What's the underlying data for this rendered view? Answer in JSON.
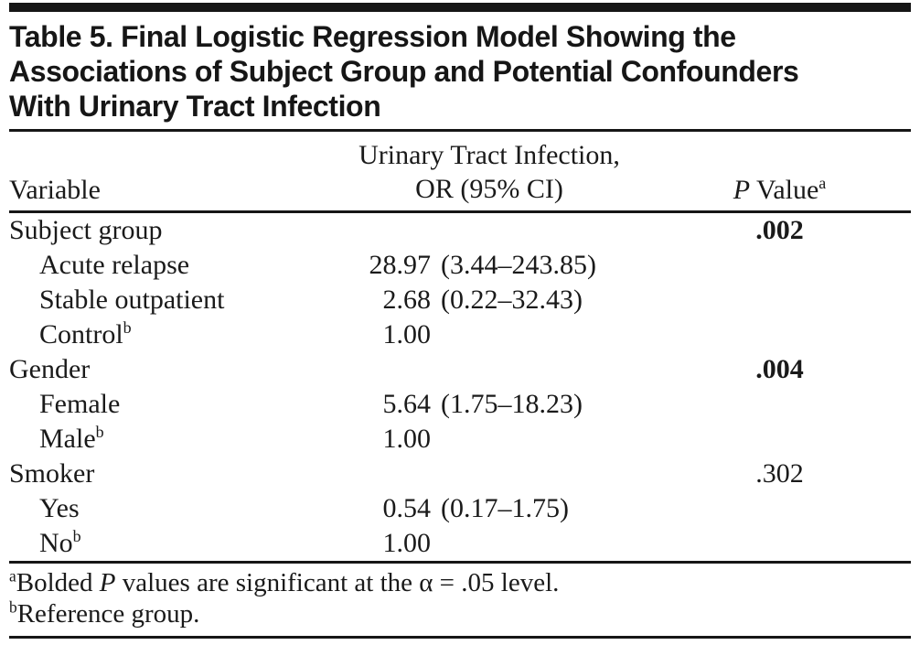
{
  "colors": {
    "ink": "#1a1a1a",
    "background": "#ffffff"
  },
  "title": {
    "lines": [
      "Table 5. Final Logistic Regression Model Showing the",
      "Associations of Subject Group and Potential Confounders",
      "With Urinary Tract Infection"
    ]
  },
  "columns": {
    "variable": "Variable",
    "or_line1": "Urinary Tract Infection,",
    "or_line2": "OR (95% CI)",
    "p_italic": "P",
    "p_rest": " Value",
    "p_sup": "a"
  },
  "rows": [
    {
      "label": "Subject group",
      "sup": "",
      "or": "",
      "ci": "",
      "p": ".002"
    },
    {
      "label": "Acute relapse",
      "sup": "",
      "or": "28.97",
      "ci": "(3.44–243.85)",
      "p": ""
    },
    {
      "label": "Stable outpatient",
      "sup": "",
      "or": "2.68",
      "ci": "(0.22–32.43)",
      "p": ""
    },
    {
      "label": "Control",
      "sup": "b",
      "or": "1.00",
      "ci": "",
      "p": ""
    },
    {
      "label": "Gender",
      "sup": "",
      "or": "",
      "ci": "",
      "p": ".004"
    },
    {
      "label": "Female",
      "sup": "",
      "or": "5.64",
      "ci": "(1.75–18.23)",
      "p": ""
    },
    {
      "label": "Male",
      "sup": "b",
      "or": "1.00",
      "ci": "",
      "p": ""
    },
    {
      "label": "Smoker",
      "sup": "",
      "or": "",
      "ci": "",
      "p": ".302"
    },
    {
      "label": "Yes",
      "sup": "",
      "or": "0.54",
      "ci": "(0.17–1.75)",
      "p": ""
    },
    {
      "label": "No",
      "sup": "b",
      "or": "1.00",
      "ci": "",
      "p": ""
    }
  ],
  "footnotes": [
    {
      "sup": "a",
      "pre": "Bolded ",
      "italic": "P",
      "post": " values are significant at the α = .05 level."
    },
    {
      "sup": "b",
      "pre": "Reference group.",
      "italic": "",
      "post": ""
    }
  ]
}
